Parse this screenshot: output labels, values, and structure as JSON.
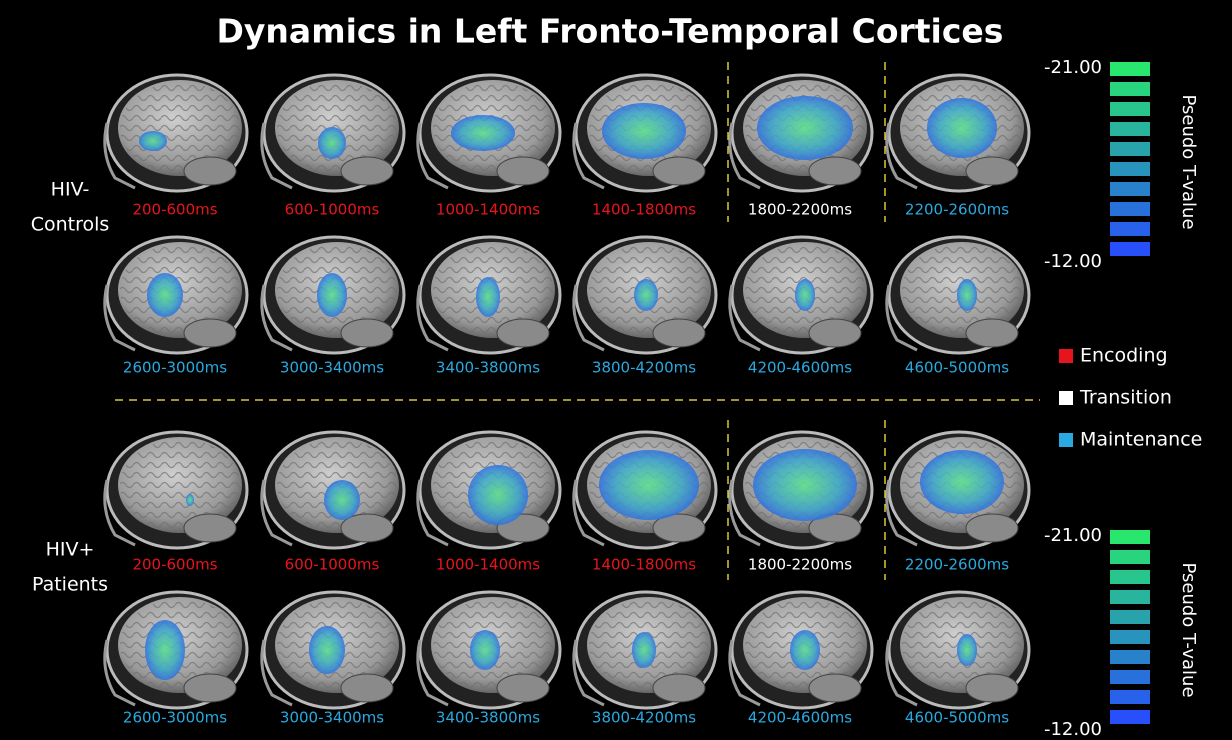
{
  "title": "Dynamics in Left Fronto-Temporal Cortices",
  "groups": [
    {
      "label_lines": [
        "HIV-",
        "Controls"
      ],
      "rows": [
        [
          {
            "label": "200-600ms",
            "color": "#e8141c"
          },
          {
            "label": "600-1000ms",
            "color": "#e8141c"
          },
          {
            "label": "1000-1400ms",
            "color": "#e8141c"
          },
          {
            "label": "1400-1800ms",
            "color": "#e8141c"
          },
          {
            "label": "1800-2200ms",
            "color": "#ffffff"
          },
          {
            "label": "2200-2600ms",
            "color": "#29a9e0"
          }
        ],
        [
          {
            "label": "2600-3000ms",
            "color": "#29a9e0"
          },
          {
            "label": "3000-3400ms",
            "color": "#29a9e0"
          },
          {
            "label": "3400-3800ms",
            "color": "#29a9e0"
          },
          {
            "label": "3800-4200ms",
            "color": "#29a9e0"
          },
          {
            "label": "4200-4600ms",
            "color": "#29a9e0"
          },
          {
            "label": "4600-5000ms",
            "color": "#29a9e0"
          }
        ]
      ],
      "colorbar": {
        "top_label": "-21.00",
        "bottom_label": "-12.00",
        "axis_label": "Pseudo T-value"
      }
    },
    {
      "label_lines": [
        "HIV+",
        "Patients"
      ],
      "rows": [
        [
          {
            "label": "200-600ms",
            "color": "#e8141c"
          },
          {
            "label": "600-1000ms",
            "color": "#e8141c"
          },
          {
            "label": "1000-1400ms",
            "color": "#e8141c"
          },
          {
            "label": "1400-1800ms",
            "color": "#e8141c"
          },
          {
            "label": "1800-2200ms",
            "color": "#ffffff"
          },
          {
            "label": "2200-2600ms",
            "color": "#29a9e0"
          }
        ],
        [
          {
            "label": "2600-3000ms",
            "color": "#29a9e0"
          },
          {
            "label": "3000-3400ms",
            "color": "#29a9e0"
          },
          {
            "label": "3400-3800ms",
            "color": "#29a9e0"
          },
          {
            "label": "3800-4200ms",
            "color": "#29a9e0"
          },
          {
            "label": "4200-4600ms",
            "color": "#29a9e0"
          },
          {
            "label": "4600-5000ms",
            "color": "#29a9e0"
          }
        ]
      ],
      "colorbar": {
        "top_label": "-21.00",
        "bottom_label": "-12.00",
        "axis_label": "Pseudo T-value"
      }
    }
  ],
  "legend": [
    {
      "name": "Encoding",
      "color": "#e8141c"
    },
    {
      "name": "Transition",
      "color": "#ffffff"
    },
    {
      "name": "Maintenance",
      "color": "#29a9e0"
    }
  ]
}
